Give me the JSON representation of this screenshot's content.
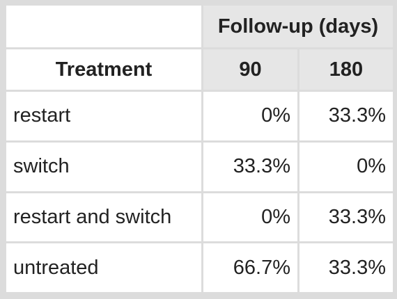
{
  "chart_data": {
    "type": "table",
    "spanner": "Follow-up (days)",
    "row_header": "Treatment",
    "columns": [
      "90",
      "180"
    ],
    "rows": [
      {
        "label": "restart",
        "values": [
          "0%",
          "33.3%"
        ]
      },
      {
        "label": "switch",
        "values": [
          "33.3%",
          "0%"
        ]
      },
      {
        "label": "restart and switch",
        "values": [
          "0%",
          "33.3%"
        ]
      },
      {
        "label": "untreated",
        "values": [
          "66.7%",
          "33.3%"
        ]
      }
    ]
  },
  "colors": {
    "grid": "#dcdcdc",
    "header_fill": "#e6e6e6",
    "cell_fill": "#ffffff",
    "text": "#222222"
  }
}
